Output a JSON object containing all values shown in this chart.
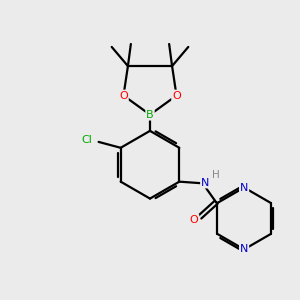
{
  "bg_color": "#ebebeb",
  "bond_color": "#000000",
  "bond_width": 1.6,
  "atom_colors": {
    "B": "#00aa00",
    "O": "#ff0000",
    "N": "#0000cc",
    "Cl": "#00aa00",
    "C": "#000000",
    "H": "#888888"
  },
  "figsize": [
    3.0,
    3.0
  ],
  "dpi": 100
}
